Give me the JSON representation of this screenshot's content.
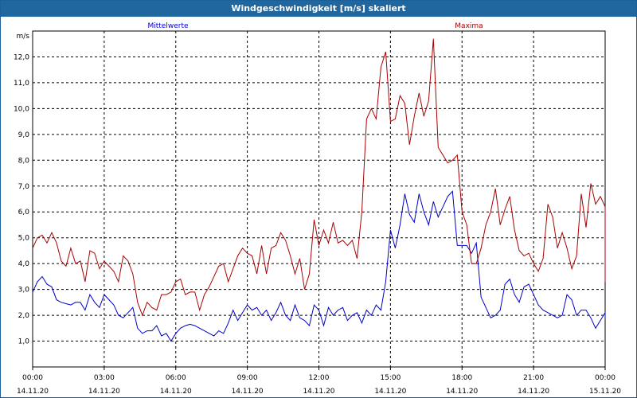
{
  "window": {
    "title": "Windgeschwindigkeit [m/s] skaliert"
  },
  "chart_data": {
    "type": "line",
    "title": "Windgeschwindigkeit [m/s] skaliert",
    "ylabel": "m/s",
    "xlabel": "",
    "ylim": [
      0,
      13
    ],
    "xlim": [
      0,
      24
    ],
    "grid": true,
    "legend_placement": "top",
    "y_ticks": [
      {
        "value": 1,
        "label": "1,0"
      },
      {
        "value": 2,
        "label": "2,0"
      },
      {
        "value": 3,
        "label": "3,0"
      },
      {
        "value": 4,
        "label": "4,0"
      },
      {
        "value": 5,
        "label": "5,0"
      },
      {
        "value": 6,
        "label": "6,0"
      },
      {
        "value": 7,
        "label": "7,0"
      },
      {
        "value": 8,
        "label": "8,0"
      },
      {
        "value": 9,
        "label": "9,0"
      },
      {
        "value": 10,
        "label": "10,0"
      },
      {
        "value": 11,
        "label": "11,0"
      },
      {
        "value": 12,
        "label": "12,0"
      }
    ],
    "x_ticks": [
      {
        "value": 0,
        "time": "00:00",
        "date": "14.11.20"
      },
      {
        "value": 3,
        "time": "03:00",
        "date": "14.11.20"
      },
      {
        "value": 6,
        "time": "06:00",
        "date": "14.11.20"
      },
      {
        "value": 9,
        "time": "09:00",
        "date": "14.11.20"
      },
      {
        "value": 12,
        "time": "12:00",
        "date": "14.11.20"
      },
      {
        "value": 15,
        "time": "15:00",
        "date": "14.11.20"
      },
      {
        "value": 18,
        "time": "18:00",
        "date": "14.11.20"
      },
      {
        "value": 21,
        "time": "21:00",
        "date": "14.11.20"
      },
      {
        "value": 24,
        "time": "00:00",
        "date": "15.11.20"
      }
    ],
    "series": [
      {
        "name": "Mittelwerte",
        "color": "#0000cc",
        "values": [
          [
            0.0,
            2.9
          ],
          [
            0.2,
            3.3
          ],
          [
            0.4,
            3.5
          ],
          [
            0.6,
            3.2
          ],
          [
            0.8,
            3.1
          ],
          [
            1.0,
            2.6
          ],
          [
            1.2,
            2.5
          ],
          [
            1.4,
            2.45
          ],
          [
            1.6,
            2.4
          ],
          [
            1.8,
            2.5
          ],
          [
            2.0,
            2.5
          ],
          [
            2.2,
            2.2
          ],
          [
            2.4,
            2.8
          ],
          [
            2.6,
            2.5
          ],
          [
            2.8,
            2.3
          ],
          [
            3.0,
            2.8
          ],
          [
            3.2,
            2.6
          ],
          [
            3.4,
            2.4
          ],
          [
            3.6,
            2.0
          ],
          [
            3.8,
            1.9
          ],
          [
            4.0,
            2.1
          ],
          [
            4.2,
            2.3
          ],
          [
            4.4,
            1.5
          ],
          [
            4.6,
            1.3
          ],
          [
            4.8,
            1.4
          ],
          [
            5.0,
            1.4
          ],
          [
            5.2,
            1.6
          ],
          [
            5.4,
            1.2
          ],
          [
            5.6,
            1.3
          ],
          [
            5.8,
            1.0
          ],
          [
            6.0,
            1.3
          ],
          [
            6.2,
            1.5
          ],
          [
            6.4,
            1.6
          ],
          [
            6.6,
            1.65
          ],
          [
            6.8,
            1.6
          ],
          [
            7.0,
            1.5
          ],
          [
            7.2,
            1.4
          ],
          [
            7.4,
            1.3
          ],
          [
            7.6,
            1.2
          ],
          [
            7.8,
            1.4
          ],
          [
            8.0,
            1.3
          ],
          [
            8.2,
            1.7
          ],
          [
            8.4,
            2.2
          ],
          [
            8.6,
            1.8
          ],
          [
            8.8,
            2.1
          ],
          [
            9.0,
            2.4
          ],
          [
            9.2,
            2.2
          ],
          [
            9.4,
            2.3
          ],
          [
            9.6,
            2.0
          ],
          [
            9.8,
            2.2
          ],
          [
            10.0,
            1.8
          ],
          [
            10.2,
            2.1
          ],
          [
            10.4,
            2.5
          ],
          [
            10.6,
            2.0
          ],
          [
            10.8,
            1.8
          ],
          [
            11.0,
            2.4
          ],
          [
            11.2,
            1.9
          ],
          [
            11.4,
            1.8
          ],
          [
            11.6,
            1.6
          ],
          [
            11.8,
            2.4
          ],
          [
            12.0,
            2.2
          ],
          [
            12.2,
            1.6
          ],
          [
            12.4,
            2.3
          ],
          [
            12.6,
            2.0
          ],
          [
            12.8,
            2.2
          ],
          [
            13.0,
            2.3
          ],
          [
            13.2,
            1.8
          ],
          [
            13.4,
            2.0
          ],
          [
            13.6,
            2.1
          ],
          [
            13.8,
            1.7
          ],
          [
            14.0,
            2.2
          ],
          [
            14.2,
            2.0
          ],
          [
            14.4,
            2.4
          ],
          [
            14.6,
            2.2
          ],
          [
            14.8,
            3.3
          ],
          [
            15.0,
            5.3
          ],
          [
            15.2,
            4.6
          ],
          [
            15.4,
            5.5
          ],
          [
            15.6,
            6.7
          ],
          [
            15.8,
            5.9
          ],
          [
            16.0,
            5.6
          ],
          [
            16.2,
            6.7
          ],
          [
            16.4,
            6.0
          ],
          [
            16.6,
            5.5
          ],
          [
            16.8,
            6.4
          ],
          [
            17.0,
            5.8
          ],
          [
            17.2,
            6.2
          ],
          [
            17.4,
            6.6
          ],
          [
            17.6,
            6.8
          ],
          [
            17.8,
            4.7
          ],
          [
            18.0,
            4.7
          ],
          [
            18.2,
            4.7
          ],
          [
            18.4,
            4.4
          ],
          [
            18.6,
            4.8
          ],
          [
            18.8,
            2.7
          ],
          [
            19.0,
            2.3
          ],
          [
            19.2,
            1.9
          ],
          [
            19.4,
            2.0
          ],
          [
            19.6,
            2.2
          ],
          [
            19.8,
            3.2
          ],
          [
            20.0,
            3.4
          ],
          [
            20.2,
            2.8
          ],
          [
            20.4,
            2.5
          ],
          [
            20.6,
            3.1
          ],
          [
            20.8,
            3.2
          ],
          [
            21.0,
            2.8
          ],
          [
            21.2,
            2.4
          ],
          [
            21.4,
            2.2
          ],
          [
            21.6,
            2.1
          ],
          [
            21.8,
            2.0
          ],
          [
            22.0,
            1.9
          ],
          [
            22.2,
            2.0
          ],
          [
            22.4,
            2.8
          ],
          [
            22.6,
            2.6
          ],
          [
            22.8,
            2.0
          ],
          [
            23.0,
            2.2
          ],
          [
            23.2,
            2.2
          ],
          [
            23.4,
            1.9
          ],
          [
            23.6,
            1.5
          ],
          [
            23.8,
            1.8
          ],
          [
            24.0,
            2.1
          ],
          [
            24.0,
            1.9
          ]
        ]
      },
      {
        "name": "Maxima",
        "color": "#aa0000",
        "values": [
          [
            0.0,
            4.6
          ],
          [
            0.2,
            5.0
          ],
          [
            0.4,
            5.1
          ],
          [
            0.6,
            4.8
          ],
          [
            0.8,
            5.2
          ],
          [
            1.0,
            4.8
          ],
          [
            1.2,
            4.1
          ],
          [
            1.4,
            3.9
          ],
          [
            1.6,
            4.6
          ],
          [
            1.8,
            4.0
          ],
          [
            2.0,
            4.1
          ],
          [
            2.2,
            3.3
          ],
          [
            2.4,
            4.5
          ],
          [
            2.6,
            4.4
          ],
          [
            2.8,
            3.8
          ],
          [
            3.0,
            4.1
          ],
          [
            3.2,
            3.9
          ],
          [
            3.4,
            3.7
          ],
          [
            3.6,
            3.3
          ],
          [
            3.8,
            4.3
          ],
          [
            4.0,
            4.1
          ],
          [
            4.2,
            3.6
          ],
          [
            4.4,
            2.5
          ],
          [
            4.6,
            2.0
          ],
          [
            4.8,
            2.5
          ],
          [
            5.0,
            2.3
          ],
          [
            5.2,
            2.2
          ],
          [
            5.4,
            2.8
          ],
          [
            5.6,
            2.8
          ],
          [
            5.8,
            2.9
          ],
          [
            6.0,
            3.3
          ],
          [
            6.2,
            3.4
          ],
          [
            6.4,
            2.8
          ],
          [
            6.6,
            2.9
          ],
          [
            6.8,
            2.9
          ],
          [
            7.0,
            2.2
          ],
          [
            7.2,
            2.8
          ],
          [
            7.4,
            3.1
          ],
          [
            7.6,
            3.5
          ],
          [
            7.8,
            3.9
          ],
          [
            8.0,
            4.0
          ],
          [
            8.2,
            3.3
          ],
          [
            8.4,
            3.8
          ],
          [
            8.6,
            4.3
          ],
          [
            8.8,
            4.6
          ],
          [
            9.0,
            4.4
          ],
          [
            9.2,
            4.3
          ],
          [
            9.4,
            3.6
          ],
          [
            9.6,
            4.7
          ],
          [
            9.8,
            3.6
          ],
          [
            10.0,
            4.6
          ],
          [
            10.2,
            4.7
          ],
          [
            10.4,
            5.2
          ],
          [
            10.6,
            4.9
          ],
          [
            10.8,
            4.3
          ],
          [
            11.0,
            3.6
          ],
          [
            11.2,
            4.2
          ],
          [
            11.4,
            3.0
          ],
          [
            11.6,
            3.6
          ],
          [
            11.8,
            5.7
          ],
          [
            12.0,
            4.7
          ],
          [
            12.2,
            5.3
          ],
          [
            12.4,
            4.8
          ],
          [
            12.6,
            5.6
          ],
          [
            12.8,
            4.8
          ],
          [
            13.0,
            4.9
          ],
          [
            13.2,
            4.7
          ],
          [
            13.4,
            4.9
          ],
          [
            13.6,
            4.2
          ],
          [
            13.8,
            6.0
          ],
          [
            14.0,
            9.6
          ],
          [
            14.2,
            10.0
          ],
          [
            14.4,
            9.6
          ],
          [
            14.6,
            11.6
          ],
          [
            14.8,
            12.2
          ],
          [
            15.0,
            9.5
          ],
          [
            15.2,
            9.6
          ],
          [
            15.4,
            10.5
          ],
          [
            15.6,
            10.2
          ],
          [
            15.8,
            8.6
          ],
          [
            16.0,
            9.7
          ],
          [
            16.2,
            10.6
          ],
          [
            16.4,
            9.7
          ],
          [
            16.6,
            10.3
          ],
          [
            16.8,
            12.7
          ],
          [
            17.0,
            8.5
          ],
          [
            17.2,
            8.2
          ],
          [
            17.4,
            7.9
          ],
          [
            17.6,
            8.0
          ],
          [
            17.8,
            8.2
          ],
          [
            18.0,
            6.0
          ],
          [
            18.2,
            5.5
          ],
          [
            18.4,
            4.0
          ],
          [
            18.6,
            4.0
          ],
          [
            18.8,
            4.6
          ],
          [
            19.0,
            5.5
          ],
          [
            19.2,
            6.0
          ],
          [
            19.4,
            6.9
          ],
          [
            19.6,
            5.5
          ],
          [
            19.8,
            6.1
          ],
          [
            20.0,
            6.6
          ],
          [
            20.2,
            5.3
          ],
          [
            20.4,
            4.5
          ],
          [
            20.6,
            4.3
          ],
          [
            20.8,
            4.4
          ],
          [
            21.0,
            4.0
          ],
          [
            21.2,
            3.7
          ],
          [
            21.4,
            4.2
          ],
          [
            21.6,
            6.3
          ],
          [
            21.8,
            5.8
          ],
          [
            22.0,
            4.6
          ],
          [
            22.2,
            5.2
          ],
          [
            22.4,
            4.6
          ],
          [
            22.6,
            3.8
          ],
          [
            22.8,
            4.3
          ],
          [
            23.0,
            6.7
          ],
          [
            23.2,
            5.4
          ],
          [
            23.4,
            7.1
          ],
          [
            23.6,
            6.3
          ],
          [
            23.8,
            6.6
          ],
          [
            24.0,
            6.2
          ],
          [
            24.0,
            3.3
          ]
        ]
      }
    ]
  }
}
